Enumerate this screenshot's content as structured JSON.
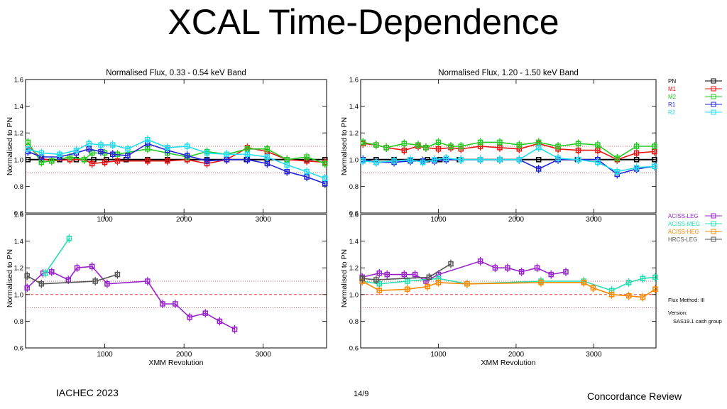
{
  "slide": {
    "title": "XCAL Time-Dependence",
    "footer_left": "IACHEC 2023",
    "footer_page": "14/9",
    "footer_right": "Concordance Review"
  },
  "colors": {
    "PN": "#000000",
    "M1": "#ee1111",
    "M2": "#22cc22",
    "R1": "#2222dd",
    "R2": "#22ddee",
    "ACISS-LEG": "#9922cc",
    "ACISS-MEG": "#22e0b0",
    "ACISS-HEG": "#ff8800",
    "HRCS-LEG": "#555555",
    "ref_line": "#dd2222"
  },
  "labels": {
    "ylabel": "Normalised to PN",
    "xlabel": "XMM Revolution"
  },
  "legend_top": [
    "PN",
    "M1",
    "M2",
    "R1",
    "R2"
  ],
  "legend_bottom": [
    "ACISS-LEG",
    "ACISS-MEG",
    "ACISS-HEG",
    "HRCS-LEG"
  ],
  "notes": {
    "flux_method": "Flux Method: III",
    "version_label": "Version:",
    "version_value": "SAS19.1 cash group"
  },
  "chart_data": [
    {
      "type": "line",
      "title": "Normalised Flux, 0.33 - 0.54 keV Band",
      "xlabel": "",
      "ylabel": "Normalised to PN",
      "xlim": [
        0,
        3800
      ],
      "ylim": [
        0.6,
        1.6
      ],
      "xticks": [
        1000,
        2000,
        3000
      ],
      "yticks": [
        0.6,
        0.8,
        1.0,
        1.2,
        1.4,
        1.6
      ],
      "series": [
        {
          "name": "PN",
          "x": [
            30,
            200,
            430,
            640,
            860,
            1020,
            1270,
            1540,
            1790,
            2040,
            2290,
            2540,
            2790,
            3050,
            3300,
            3550,
            3780
          ],
          "y": [
            1.0,
            1.0,
            1.0,
            1.0,
            1.0,
            1.0,
            1.0,
            1.0,
            1.0,
            1.0,
            1.0,
            1.0,
            1.0,
            1.0,
            1.0,
            1.0,
            1.0
          ]
        },
        {
          "name": "M1",
          "x": [
            30,
            200,
            330,
            560,
            740,
            840,
            1000,
            1160,
            1540,
            1790,
            2040,
            2290,
            2540,
            2800,
            3050,
            3300,
            3550,
            3780
          ],
          "y": [
            1.1,
            1.01,
            0.99,
            1.0,
            1.0,
            0.97,
            0.98,
            0.99,
            0.99,
            0.99,
            1.0,
            0.97,
            1.0,
            1.09,
            1.06,
            1.0,
            0.99,
            0.98
          ]
        },
        {
          "name": "M2",
          "x": [
            30,
            200,
            330,
            560,
            740,
            840,
            1000,
            1160,
            1540,
            1790,
            2040,
            2290,
            2540,
            2800,
            3050,
            3300,
            3550,
            3780
          ],
          "y": [
            1.13,
            0.98,
            0.99,
            1.02,
            1.0,
            1.05,
            1.05,
            1.04,
            1.08,
            1.05,
            1.02,
            1.06,
            1.04,
            1.08,
            1.08,
            1.0,
            1.02,
            0.97
          ]
        },
        {
          "name": "R1",
          "x": [
            30,
            200,
            430,
            640,
            800,
            950,
            1100,
            1290,
            1540,
            1790,
            2040,
            2290,
            2540,
            2800,
            3050,
            3300,
            3550,
            3780
          ],
          "y": [
            1.06,
            1.02,
            1.02,
            1.05,
            1.08,
            1.06,
            1.04,
            1.03,
            1.12,
            1.07,
            1.03,
            0.99,
            1.0,
            1.0,
            0.97,
            0.91,
            0.87,
            0.82
          ]
        },
        {
          "name": "R2",
          "x": [
            30,
            200,
            430,
            640,
            800,
            950,
            1100,
            1290,
            1540,
            1790,
            2040,
            2290,
            2540,
            2800,
            3050,
            3300,
            3550,
            3780
          ],
          "y": [
            1.08,
            1.05,
            1.04,
            1.07,
            1.12,
            1.11,
            1.11,
            1.08,
            1.15,
            1.09,
            1.1,
            1.05,
            1.04,
            1.04,
            1.02,
            0.96,
            0.91,
            0.86
          ]
        }
      ]
    },
    {
      "type": "line",
      "title": "Normalised Flux, 1.20 - 1.50 keV Band",
      "xlabel": "",
      "ylabel": "Normalised to PN",
      "xlim": [
        0,
        3800
      ],
      "ylim": [
        0.6,
        1.6
      ],
      "xticks": [
        1000,
        2000,
        3000
      ],
      "yticks": [
        0.6,
        0.8,
        1.0,
        1.2,
        1.4,
        1.6
      ],
      "series": [
        {
          "name": "PN",
          "x": [
            30,
            200,
            430,
            640,
            860,
            1020,
            1270,
            1540,
            1790,
            2040,
            2290,
            2540,
            2790,
            3050,
            3300,
            3550,
            3780
          ],
          "y": [
            1.0,
            1.0,
            1.0,
            1.0,
            1.0,
            1.0,
            1.0,
            1.0,
            1.0,
            1.0,
            1.0,
            1.0,
            1.0,
            1.0,
            1.0,
            1.0,
            1.0
          ]
        },
        {
          "name": "M1",
          "x": [
            30,
            200,
            330,
            560,
            740,
            840,
            1000,
            1160,
            1290,
            1540,
            1790,
            2040,
            2290,
            2540,
            2800,
            3050,
            3300,
            3550,
            3780
          ],
          "y": [
            1.12,
            1.11,
            1.09,
            1.07,
            1.1,
            1.09,
            1.08,
            1.09,
            1.08,
            1.1,
            1.09,
            1.08,
            1.12,
            1.08,
            1.07,
            1.07,
            1.0,
            1.05,
            1.06
          ]
        },
        {
          "name": "M2",
          "x": [
            30,
            200,
            330,
            560,
            740,
            840,
            1000,
            1160,
            1290,
            1540,
            1790,
            2040,
            2290,
            2540,
            2800,
            3050,
            3300,
            3550,
            3780
          ],
          "y": [
            1.13,
            1.11,
            1.09,
            1.12,
            1.11,
            1.09,
            1.13,
            1.1,
            1.1,
            1.13,
            1.13,
            1.11,
            1.13,
            1.1,
            1.12,
            1.11,
            1.01,
            1.1,
            1.1
          ]
        },
        {
          "name": "R1",
          "x": [
            30,
            200,
            430,
            640,
            800,
            950,
            1100,
            1290,
            1540,
            1790,
            2040,
            2290,
            2540,
            2800,
            3050,
            3300,
            3550,
            3780
          ],
          "y": [
            1.0,
            0.98,
            0.98,
            0.99,
            0.99,
            0.99,
            1.0,
            1.0,
            1.0,
            1.0,
            1.0,
            0.93,
            1.0,
            1.0,
            1.0,
            0.89,
            0.93,
            0.95
          ]
        },
        {
          "name": "R2",
          "x": [
            30,
            200,
            430,
            640,
            800,
            950,
            1100,
            1290,
            1540,
            1790,
            2040,
            2290,
            2540,
            2800,
            3050,
            3300,
            3550,
            3780
          ],
          "y": [
            0.99,
            0.98,
            0.99,
            1.0,
            0.98,
            1.0,
            1.01,
            1.0,
            1.0,
            1.0,
            1.0,
            1.09,
            1.01,
            1.0,
            0.98,
            0.91,
            0.94,
            0.95
          ]
        }
      ]
    },
    {
      "type": "line",
      "title": "",
      "xlabel": "XMM Revolution",
      "ylabel": "Normalised to PN",
      "xlim": [
        0,
        3800
      ],
      "ylim": [
        0.6,
        1.6
      ],
      "xticks": [
        1000,
        2000,
        3000
      ],
      "yticks": [
        0.6,
        0.8,
        1.0,
        1.2,
        1.4,
        1.6
      ],
      "series": [
        {
          "name": "ACISS-LEG",
          "x": [
            20,
            220,
            330,
            540,
            650,
            840,
            1030,
            1540,
            1730,
            1890,
            2070,
            2270,
            2450,
            2640
          ],
          "y": [
            1.05,
            1.16,
            1.17,
            1.11,
            1.2,
            1.21,
            1.08,
            1.1,
            0.93,
            0.93,
            0.83,
            0.86,
            0.8,
            0.74
          ]
        },
        {
          "name": "ACISS-MEG",
          "x": [
            250,
            550
          ],
          "y": [
            1.16,
            1.42
          ]
        },
        {
          "name": "HRCS-LEG",
          "x": [
            20,
            200,
            880,
            1160
          ],
          "y": [
            1.14,
            1.08,
            1.1,
            1.15
          ]
        }
      ]
    },
    {
      "type": "line",
      "title": "",
      "xlabel": "XMM Revolution",
      "ylabel": "Normalised to PN",
      "xlim": [
        0,
        3800
      ],
      "ylim": [
        0.6,
        1.6
      ],
      "xticks": [
        1000,
        2000,
        3000
      ],
      "yticks": [
        0.6,
        0.8,
        1.0,
        1.2,
        1.4,
        1.6
      ],
      "series": [
        {
          "name": "ACISS-LEG",
          "x": [
            20,
            240,
            340,
            560,
            700,
            840,
            1000,
            1540,
            1730,
            1890,
            2070,
            2270,
            2450,
            2640
          ],
          "y": [
            1.13,
            1.16,
            1.15,
            1.15,
            1.15,
            1.1,
            1.15,
            1.25,
            1.2,
            1.2,
            1.17,
            1.2,
            1.15,
            1.17
          ]
        },
        {
          "name": "ACISS-MEG",
          "x": [
            20,
            240,
            600,
            1000,
            1370,
            2320,
            2870,
            3230,
            3450,
            3630,
            3790
          ],
          "y": [
            1.1,
            1.08,
            1.1,
            1.12,
            1.08,
            1.1,
            1.1,
            1.03,
            1.09,
            1.12,
            1.13
          ]
        },
        {
          "name": "ACISS-HEG",
          "x": [
            20,
            240,
            600,
            860,
            1000,
            1370,
            2320,
            2870,
            2990,
            3230,
            3450,
            3630,
            3790
          ],
          "y": [
            1.1,
            1.03,
            1.04,
            1.06,
            1.09,
            1.08,
            1.09,
            1.09,
            1.05,
            1.0,
            0.99,
            0.98,
            1.04
          ]
        },
        {
          "name": "HRCS-LEG",
          "x": [
            20,
            200,
            880,
            1160
          ],
          "y": [
            1.12,
            1.11,
            1.13,
            1.23
          ]
        }
      ]
    }
  ]
}
